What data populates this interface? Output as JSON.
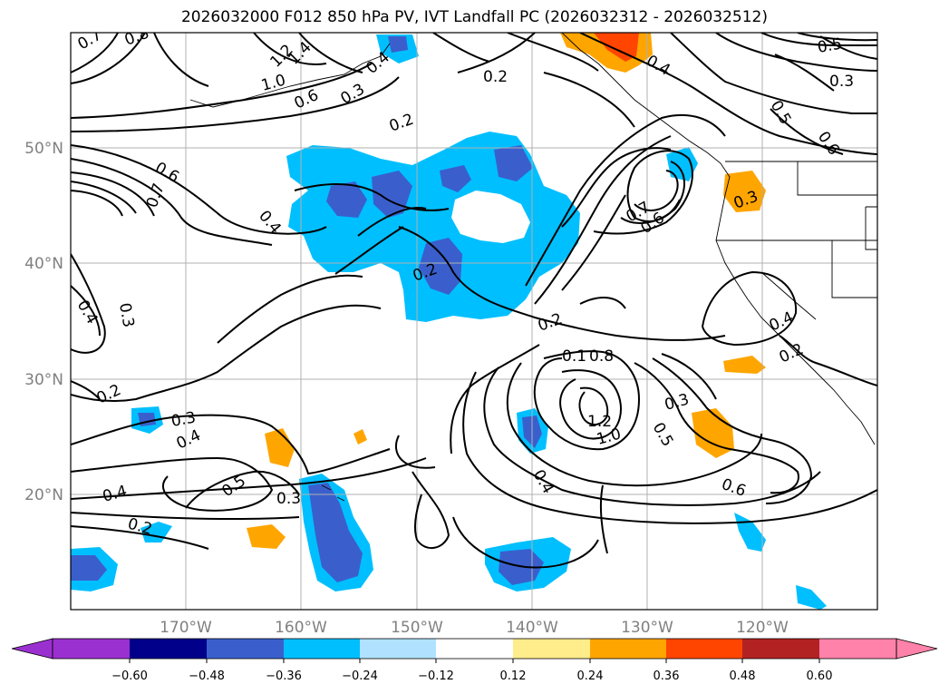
{
  "title": "2026032000 F012 850 hPa PV, IVT Landfall PC (2026032312 - 2026032512)",
  "lat_labels": [
    "50°N",
    "40°N",
    "30°N",
    "20°N"
  ],
  "lon_labels": [
    "170°W",
    "160°W",
    "150°W",
    "140°W",
    "130°W",
    "120°W"
  ],
  "colorbar": {
    "ticks": [
      "−0.60",
      "−0.48",
      "−0.36",
      "−0.24",
      "−0.12",
      "0.12",
      "0.24",
      "0.36",
      "0.48",
      "0.60"
    ],
    "colors": [
      "#9b30d0",
      "#00008b",
      "#3a5fcd",
      "#00bfff",
      "#b0e2ff",
      "#ffffff",
      "#ffec8b",
      "#ffa500",
      "#ff4500",
      "#b22222",
      "#ff82ab"
    ]
  },
  "contour_labels": [
    "0.7",
    "0.8",
    "1.2",
    "1.4",
    "1.0",
    "0.6",
    "0.3",
    "0.2",
    "0.2",
    "0.4",
    "0.4",
    "0.5",
    "0.3",
    "0.5",
    "0.6",
    "0.6",
    "0.7",
    "0.4",
    "0.6",
    "0.7",
    "0.3",
    "0.4",
    "0.3",
    "0.2",
    "0.2",
    "0.4",
    "0.2",
    "0.1",
    "0.8",
    "0.3",
    "1.2",
    "1.0",
    "0.5",
    "0.2",
    "0.3",
    "0.4",
    "0.5",
    "0.4",
    "0.2",
    "0.3",
    "0.6",
    "0.4"
  ],
  "colors": {
    "grid": "#b0b0b0",
    "axis_label": "#808080",
    "contour": "#000000",
    "neg_dark": "#3a5fcd",
    "neg_mid": "#00bfff",
    "neg_light": "#b0e2ff",
    "pos_light": "#ffec8b",
    "pos_mid": "#ffa500",
    "pos_dark": "#ff4500"
  }
}
